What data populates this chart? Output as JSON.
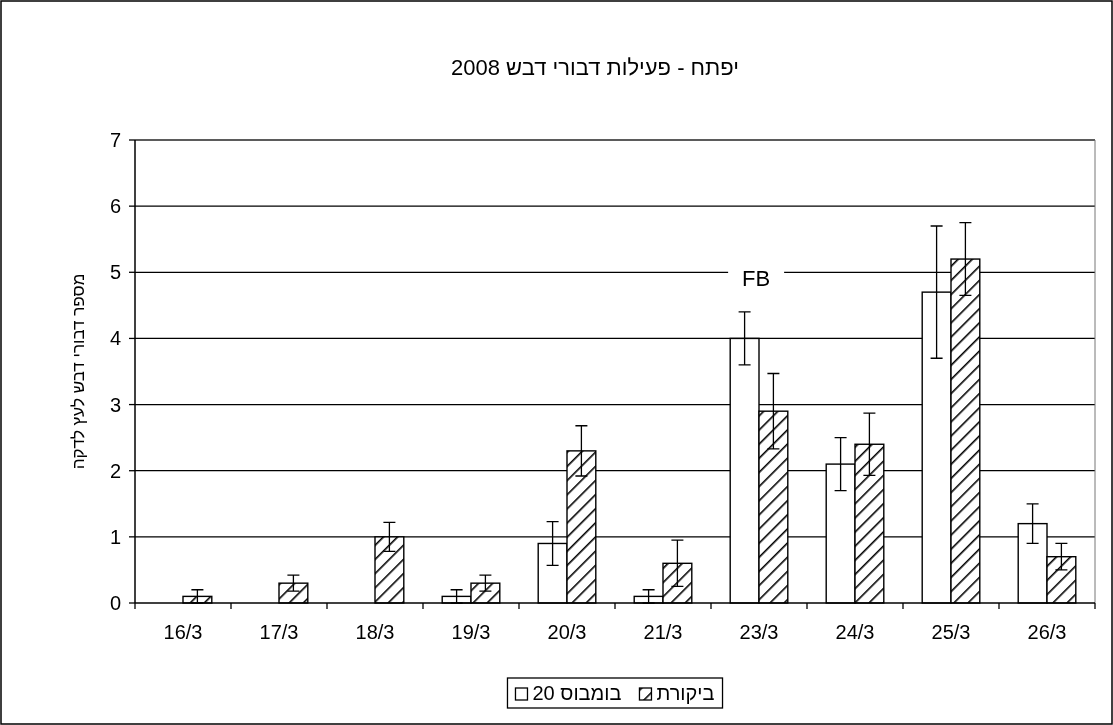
{
  "chart_data": {
    "type": "bar",
    "title": "יפתח - פעילות דבורי דבש 2008",
    "ylabel": "מספר דבורי דבש לעץ לדקה",
    "categories": [
      "16/3",
      "17/3",
      "18/3",
      "19/3",
      "20/3",
      "21/3",
      "23/3",
      "24/3",
      "25/3",
      "26/3"
    ],
    "series": [
      {
        "name": "בומבוס 20",
        "color": "#ffffff",
        "values": [
          0,
          0,
          0,
          0.1,
          0.9,
          0.1,
          4.0,
          2.1,
          4.7,
          1.2
        ],
        "errors": [
          null,
          null,
          null,
          0.1,
          0.33,
          0.1,
          0.4,
          0.4,
          1.0,
          0.3
        ]
      },
      {
        "name": "ביקורת",
        "color": "#000000",
        "values": [
          0.1,
          0.3,
          1.0,
          0.3,
          2.3,
          0.6,
          2.9,
          2.4,
          5.2,
          0.7
        ],
        "errors": [
          0.1,
          0.12,
          0.22,
          0.12,
          0.38,
          0.35,
          0.57,
          0.47,
          0.55,
          0.2
        ]
      }
    ],
    "ylim": [
      0,
      7
    ],
    "yticks": [
      0,
      1,
      2,
      3,
      4,
      5,
      6,
      7
    ],
    "grid": "y",
    "legend": "bottom",
    "annotations": [
      "FB"
    ]
  }
}
